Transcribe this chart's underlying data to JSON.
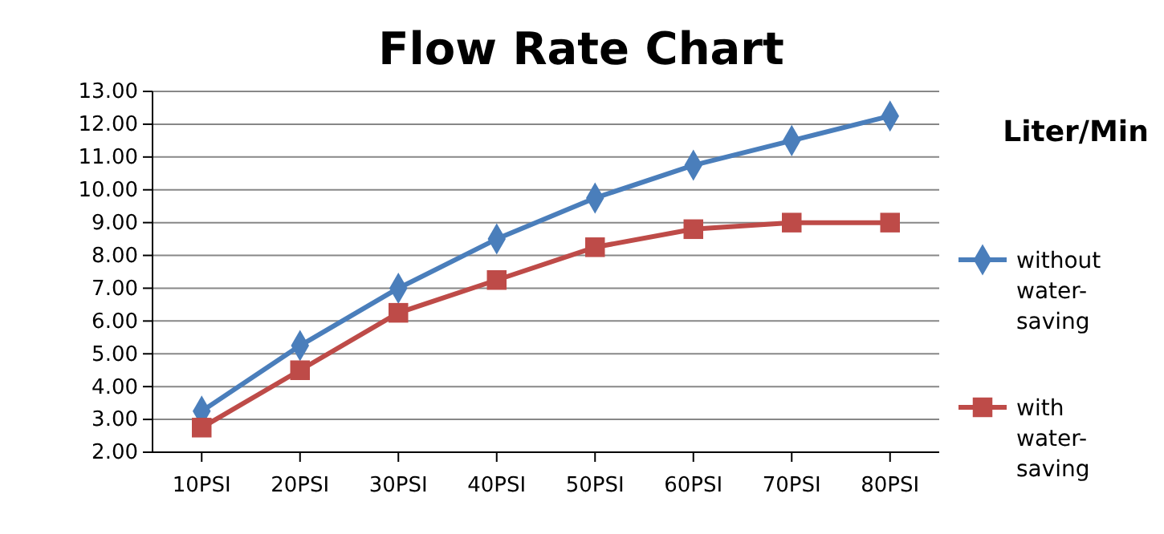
{
  "chart_data": {
    "type": "line",
    "title": "Flow Rate Chart",
    "ylabel": "Liter/Min",
    "categories": [
      "10PSI",
      "20PSI",
      "30PSI",
      "40PSI",
      "50PSI",
      "60PSI",
      "70PSI",
      "80PSI"
    ],
    "series": [
      {
        "name": "without water-saving",
        "color": "#4a7ebb",
        "marker": "diamond",
        "values": [
          3.25,
          5.25,
          7.0,
          8.5,
          9.75,
          10.75,
          11.5,
          12.25
        ]
      },
      {
        "name": "with water-saving",
        "color": "#be4b48",
        "marker": "square",
        "values": [
          2.75,
          4.5,
          6.25,
          7.25,
          8.25,
          8.8,
          9.0,
          9.0
        ]
      }
    ],
    "ylim": [
      2,
      13
    ],
    "yticks": [
      {
        "value": 2,
        "label": "2.00"
      },
      {
        "value": 3,
        "label": "3.00"
      },
      {
        "value": 4,
        "label": "4.00"
      },
      {
        "value": 5,
        "label": "5.00"
      },
      {
        "value": 6,
        "label": "6.00"
      },
      {
        "value": 7,
        "label": "7.00"
      },
      {
        "value": 8,
        "label": "8.00"
      },
      {
        "value": 9,
        "label": "9.00"
      },
      {
        "value": 10,
        "label": "10.00"
      },
      {
        "value": 11,
        "label": "11.00"
      },
      {
        "value": 12,
        "label": "12.00"
      },
      {
        "value": 13,
        "label": "13.00"
      }
    ],
    "grid": "y",
    "legend": "right"
  }
}
